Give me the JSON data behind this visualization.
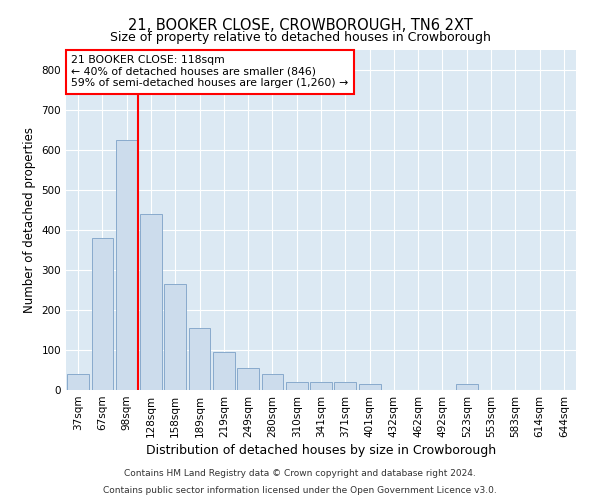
{
  "title": "21, BOOKER CLOSE, CROWBOROUGH, TN6 2XT",
  "subtitle": "Size of property relative to detached houses in Crowborough",
  "xlabel": "Distribution of detached houses by size in Crowborough",
  "ylabel": "Number of detached properties",
  "bar_color": "#ccdcec",
  "bar_edge_color": "#88aacc",
  "background_color": "#dce9f3",
  "categories": [
    "37sqm",
    "67sqm",
    "98sqm",
    "128sqm",
    "158sqm",
    "189sqm",
    "219sqm",
    "249sqm",
    "280sqm",
    "310sqm",
    "341sqm",
    "371sqm",
    "401sqm",
    "432sqm",
    "462sqm",
    "492sqm",
    "523sqm",
    "553sqm",
    "583sqm",
    "614sqm",
    "644sqm"
  ],
  "values": [
    40,
    380,
    625,
    440,
    265,
    155,
    95,
    55,
    40,
    20,
    20,
    20,
    15,
    0,
    0,
    0,
    15,
    0,
    0,
    0,
    0
  ],
  "property_line_x": 2.45,
  "annotation_text": "21 BOOKER CLOSE: 118sqm\n← 40% of detached houses are smaller (846)\n59% of semi-detached houses are larger (1,260) →",
  "annotation_box_color": "white",
  "annotation_border_color": "red",
  "vline_color": "red",
  "ylim": [
    0,
    850
  ],
  "yticks": [
    0,
    100,
    200,
    300,
    400,
    500,
    600,
    700,
    800
  ],
  "footnote1": "Contains HM Land Registry data © Crown copyright and database right 2024.",
  "footnote2": "Contains public sector information licensed under the Open Government Licence v3.0.",
  "title_fontsize": 10.5,
  "subtitle_fontsize": 9,
  "xlabel_fontsize": 9,
  "ylabel_fontsize": 8.5,
  "annotation_fontsize": 7.8,
  "tick_fontsize": 7.5,
  "footnote_fontsize": 6.5
}
